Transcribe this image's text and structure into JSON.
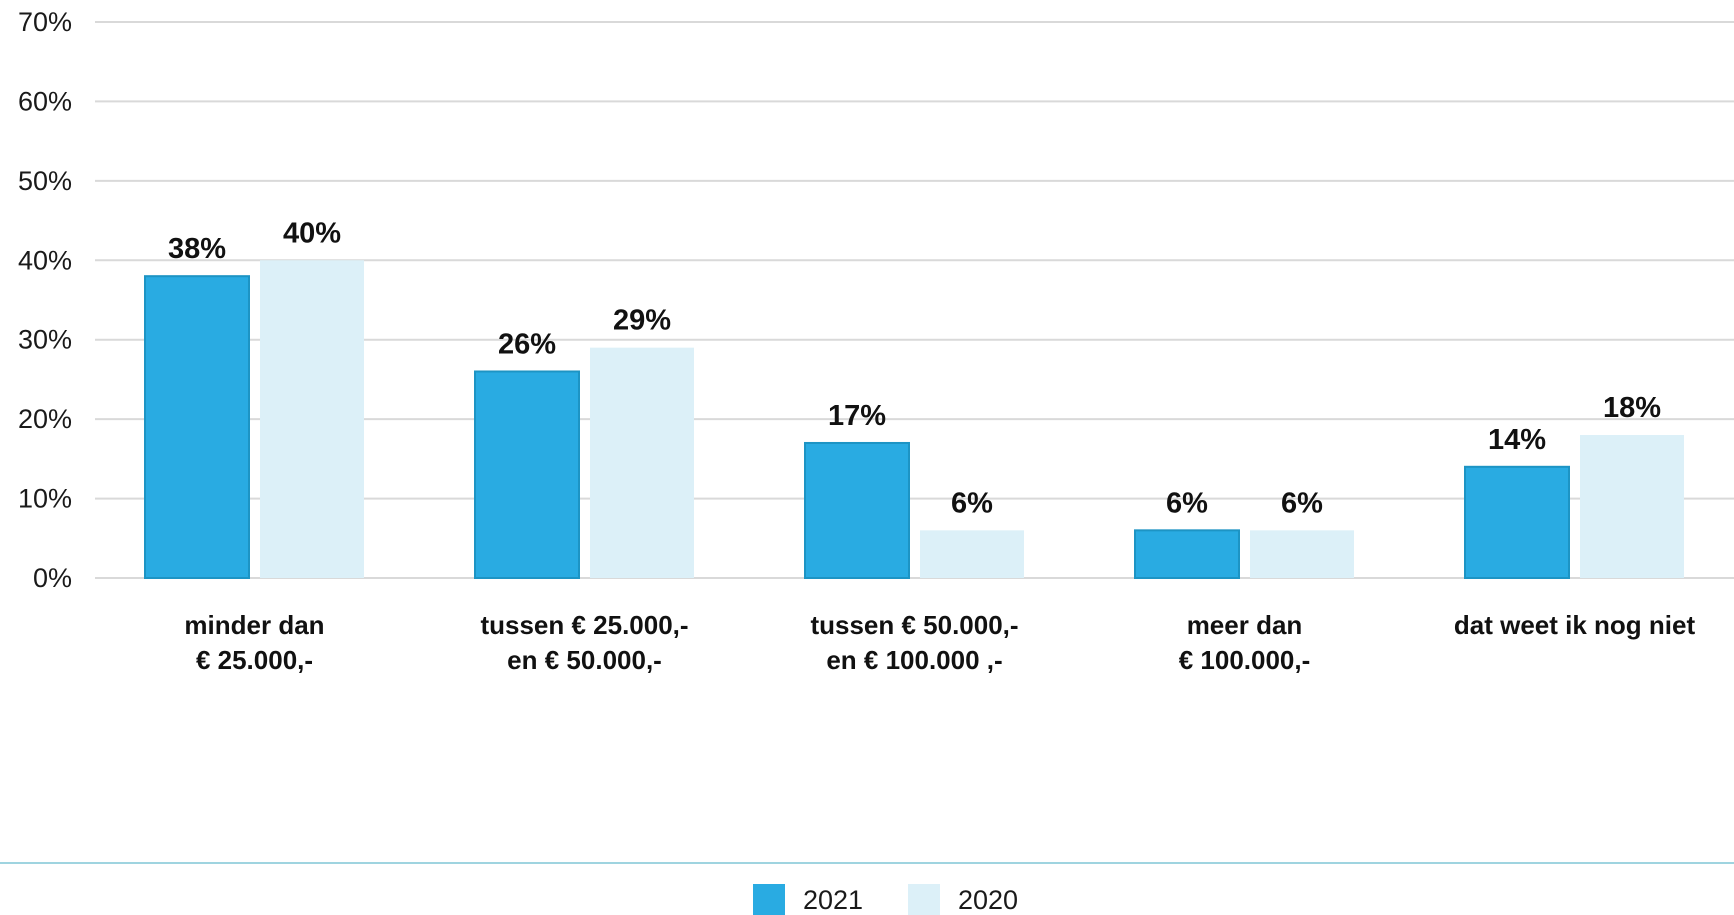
{
  "chart_data": {
    "type": "bar",
    "categories": [
      [
        "minder dan",
        "€ 25.000,-"
      ],
      [
        "tussen € 25.000,-",
        "en € 50.000,-"
      ],
      [
        "tussen € 50.000,-",
        "en € 100.000 ,-"
      ],
      [
        "meer dan",
        "€ 100.000,-"
      ],
      [
        "dat weet ik nog niet"
      ]
    ],
    "series": [
      {
        "name": "2021",
        "color": "#29abe2",
        "values": [
          38,
          26,
          17,
          6,
          14
        ],
        "labels": [
          "38%",
          "26%",
          "17%",
          "6%",
          "14%"
        ]
      },
      {
        "name": "2020",
        "color": "#dcf0f8",
        "values": [
          40,
          29,
          6,
          6,
          18
        ],
        "labels": [
          "40%",
          "29%",
          "6%",
          "6%",
          "18%"
        ]
      }
    ],
    "y_ticks": [
      0,
      10,
      20,
      30,
      40,
      50,
      60,
      70
    ],
    "y_tick_labels": [
      "0%",
      "10%",
      "20%",
      "30%",
      "40%",
      "50%",
      "60%",
      "70%"
    ],
    "ylim": [
      0,
      70
    ],
    "grid": true,
    "legend_position": "bottom-center",
    "colors": {
      "grid": "#d9d9d9",
      "separator": "#9fd4e0",
      "bar_2021_border": "#1d94c4"
    }
  }
}
